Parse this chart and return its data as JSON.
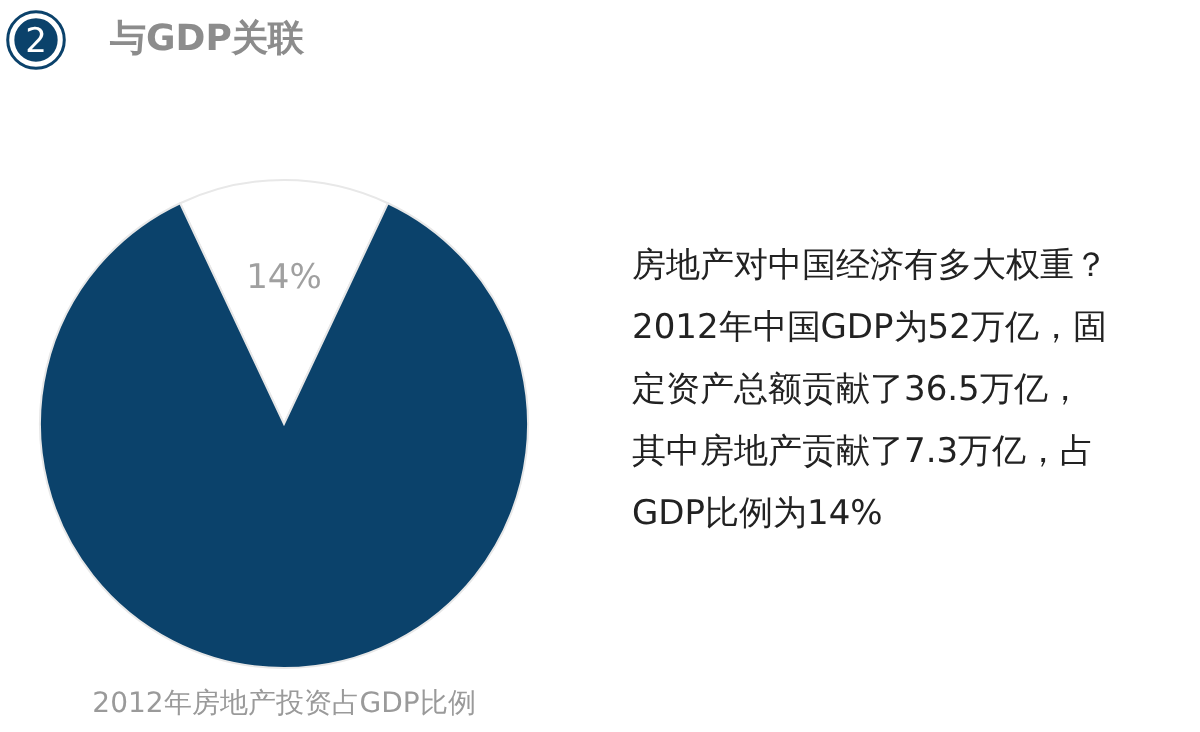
{
  "chart_data": {
    "type": "pie",
    "title": "与GDP关联",
    "categories": [
      null,
      null
    ],
    "values": [
      14,
      86
    ],
    "colors": [
      "#ffffff",
      "#0b426b"
    ],
    "value_labels": [
      "14%",
      null
    ],
    "annotations": [
      "2",
      "房地产对中国经济有多大权重？2012年中国GDP为52万亿，固定资产总额贡献了36.5万亿，其中房地产贡献了7.3万亿，占GDP比例为14%",
      "2012年房地产投资占GDP比例"
    ]
  }
}
